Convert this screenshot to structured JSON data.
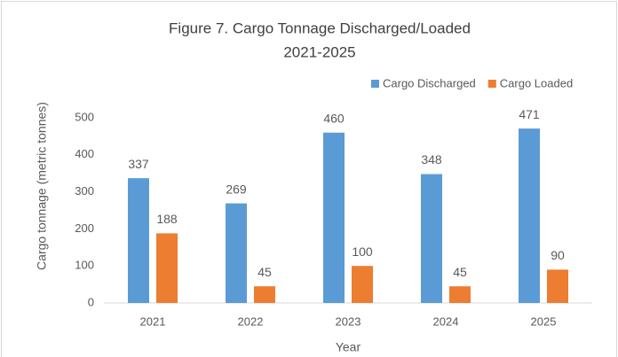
{
  "chart_data": {
    "type": "bar",
    "title": [
      "Figure 7. Cargo Tonnage Discharged/Loaded",
      "2021-2025"
    ],
    "x_label": "Year",
    "y_label": "Cargo tonnage (metric tonnes)",
    "categories": [
      "2021",
      "2022",
      "2023",
      "2024",
      "2025"
    ],
    "series": [
      {
        "name": "Cargo Discharged",
        "color": "#5b9bd5",
        "values": [
          337,
          269,
          460,
          348,
          471
        ]
      },
      {
        "name": "Cargo Loaded",
        "color": "#ed7d31",
        "values": [
          188,
          45,
          100,
          45,
          90
        ]
      }
    ],
    "ylim": [
      0,
      500
    ],
    "yticks": [
      0,
      100,
      200,
      300,
      400,
      500
    ],
    "grid": false,
    "legend": "top-right"
  }
}
